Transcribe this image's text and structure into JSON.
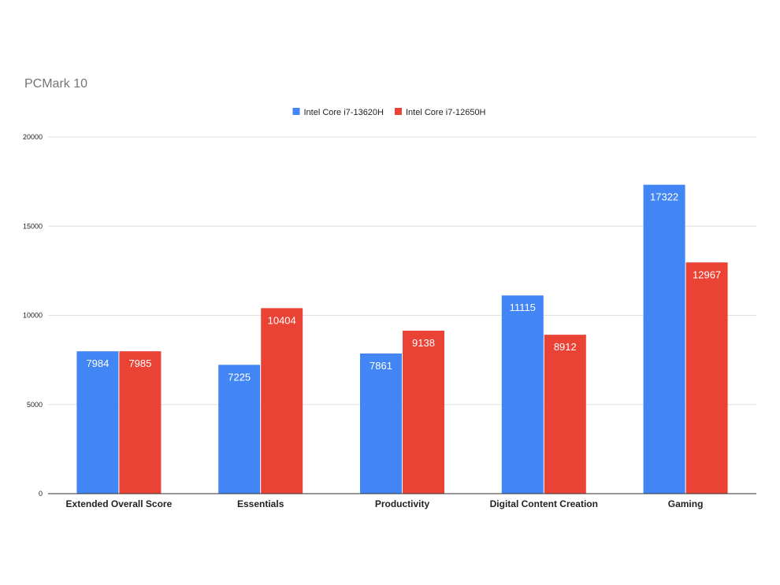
{
  "chart_data": {
    "type": "bar",
    "title": "PCMark 10",
    "xlabel": "",
    "ylabel": "",
    "categories": [
      "Extended Overall Score",
      "Essentials",
      "Productivity",
      "Digital Content Creation",
      "Gaming"
    ],
    "series": [
      {
        "name": "Intel Core i7-13620H",
        "color": "#4285f4",
        "values": [
          7984,
          7225,
          7861,
          11115,
          17322
        ]
      },
      {
        "name": "Intel Core i7-12650H",
        "color": "#ea4335",
        "values": [
          7985,
          10404,
          9138,
          8912,
          12967
        ]
      }
    ],
    "ylim": [
      0,
      20000
    ],
    "yticks": [
      0,
      5000,
      10000,
      15000,
      20000
    ],
    "grid": true,
    "legend": "top-center",
    "data_labels": true
  }
}
